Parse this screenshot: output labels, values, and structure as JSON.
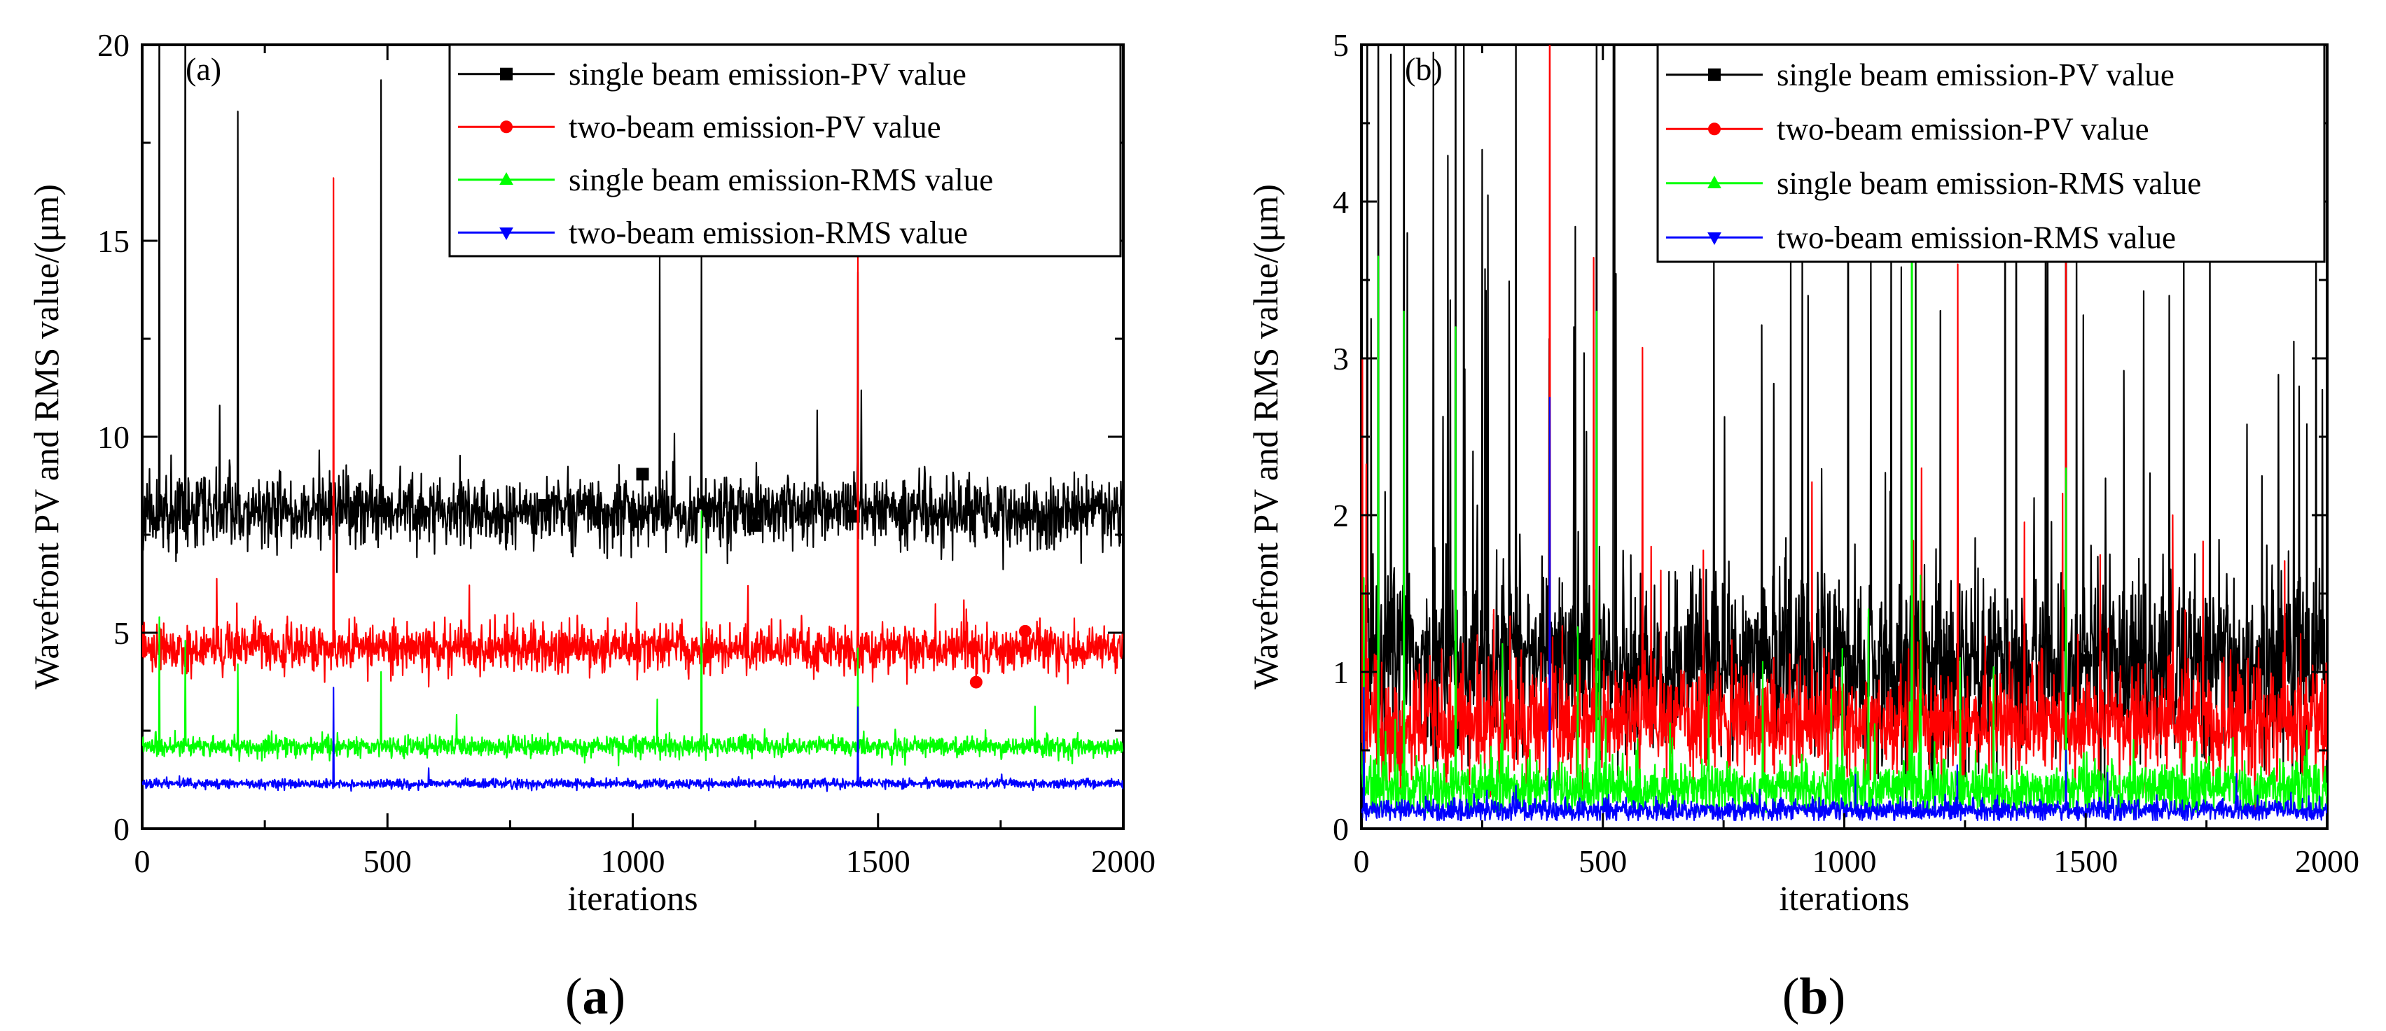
{
  "chart_data": [
    {
      "id": "a",
      "type": "line",
      "panel_tag": "(a)",
      "caption_letter": "a",
      "xlabel": "iterations",
      "ylabel": "Wavefront PV and RMS value/(μm)",
      "xlim": [
        0,
        2000
      ],
      "ylim": [
        0,
        20
      ],
      "xticks": [
        0,
        500,
        1000,
        1500,
        2000
      ],
      "yticks": [
        0,
        5,
        10,
        15,
        20
      ],
      "x_minor_step": 250,
      "y_minor_step": 2.5,
      "legend_position": "top-right",
      "series": [
        {
          "name": "single beam emission-PV value",
          "color": "#000000",
          "marker": "square",
          "base": 8.1,
          "noise": 0.45,
          "seed": 11,
          "outliers": 0.004,
          "outlier_mult": 1.4,
          "marker_at": [
            490,
            820,
            1020,
            1250,
            1450
          ],
          "spikes": [
            [
              35,
              24
            ],
            [
              88,
              24
            ],
            [
              195,
              18.3
            ],
            [
              487,
              19.1
            ],
            [
              1055,
              14.6
            ],
            [
              1140,
              14.6
            ],
            [
              1459,
              14.2
            ]
          ]
        },
        {
          "name": "two-beam emission-PV value",
          "color": "#ff0000",
          "marker": "circle",
          "base": 4.6,
          "noise": 0.3,
          "seed": 23,
          "outliers": 0.004,
          "outlier_mult": 1.5,
          "marker_at": [
            1700,
            1800
          ],
          "spikes": [
            [
              390,
              16.6
            ],
            [
              1459,
              14.6
            ],
            [
              1235,
              6.2
            ],
            [
              1680,
              5.6
            ]
          ]
        },
        {
          "name": "single beam emission-RMS value",
          "color": "#00ff00",
          "marker": "triangle-up",
          "base": 2.1,
          "noise": 0.13,
          "seed": 37,
          "outliers": 0.004,
          "outlier_mult": 1.6,
          "marker_at": [],
          "spikes": [
            [
              35,
              5.4
            ],
            [
              88,
              4.8
            ],
            [
              195,
              4.2
            ],
            [
              487,
              4.0
            ],
            [
              1140,
              8.1
            ],
            [
              1459,
              4.6
            ],
            [
              1050,
              3.3
            ]
          ]
        },
        {
          "name": "two-beam emission-RMS value",
          "color": "#0000ff",
          "marker": "triangle-down",
          "base": 1.15,
          "noise": 0.06,
          "seed": 41,
          "outliers": 0.003,
          "outlier_mult": 1.3,
          "marker_at": [],
          "spikes": [
            [
              390,
              3.6
            ],
            [
              1459,
              3.1
            ]
          ]
        }
      ]
    },
    {
      "id": "b",
      "type": "line",
      "panel_tag": "(b)",
      "caption_letter": "b",
      "xlabel": "iterations",
      "ylabel": "Wavefront PV and RMS value/(μm)",
      "xlim": [
        0,
        2000
      ],
      "ylim": [
        0,
        5
      ],
      "xticks": [
        0,
        500,
        1000,
        1500,
        2000
      ],
      "yticks": [
        0,
        1,
        2,
        3,
        4,
        5
      ],
      "x_minor_step": 250,
      "y_minor_step": 0.5,
      "legend_position": "top-right",
      "series": [
        {
          "name": "single beam emission-PV value",
          "color": "#000000",
          "marker": "square",
          "base": 1.05,
          "noise": 0.28,
          "seed": 53,
          "outliers": 0.05,
          "outlier_mult": 3.8,
          "marker_at": [
            500,
            1000,
            1500
          ],
          "spikes": [
            [
              12,
              6
            ],
            [
              35,
              6
            ],
            [
              88,
              6
            ],
            [
              195,
              6
            ],
            [
              487,
              6
            ],
            [
              1140,
              6
            ],
            [
              1459,
              6
            ],
            [
              440,
              3.2
            ],
            [
              925,
              3.4
            ],
            [
              1055,
              3.7
            ],
            [
              1990,
              2.8
            ],
            [
              95,
              3.8
            ]
          ]
        },
        {
          "name": "two-beam emission-PV value",
          "color": "#ff0000",
          "marker": "circle",
          "base": 0.68,
          "noise": 0.17,
          "seed": 67,
          "outliers": 0.02,
          "outlier_mult": 2.8,
          "marker_at": [
            1,
            1459
          ],
          "spikes": [
            [
              2,
              3.0
            ],
            [
              390,
              6
            ],
            [
              1235,
              3.6
            ],
            [
              1459,
              3.7
            ],
            [
              1160,
              2.3
            ],
            [
              1680,
              2.0
            ],
            [
              600,
              1.8
            ]
          ]
        },
        {
          "name": "single beam emission-RMS value",
          "color": "#00ff00",
          "marker": "triangle-up",
          "base": 0.26,
          "noise": 0.09,
          "seed": 79,
          "outliers": 0.02,
          "outlier_mult": 2.6,
          "marker_at": [
            1140
          ],
          "spikes": [
            [
              35,
              3.65
            ],
            [
              88,
              3.3
            ],
            [
              195,
              3.2
            ],
            [
              487,
              3.3
            ],
            [
              1140,
              6
            ],
            [
              1459,
              2.3
            ],
            [
              5,
              1.6
            ],
            [
              1050,
              1.4
            ]
          ]
        },
        {
          "name": "two-beam emission-RMS value",
          "color": "#0000ff",
          "marker": "triangle-down",
          "base": 0.12,
          "noise": 0.035,
          "seed": 97,
          "outliers": 0.01,
          "outlier_mult": 2.2,
          "marker_at": [],
          "spikes": [
            [
              390,
              2.75
            ],
            [
              5,
              0.9
            ],
            [
              1459,
              0.5
            ]
          ]
        }
      ]
    }
  ]
}
